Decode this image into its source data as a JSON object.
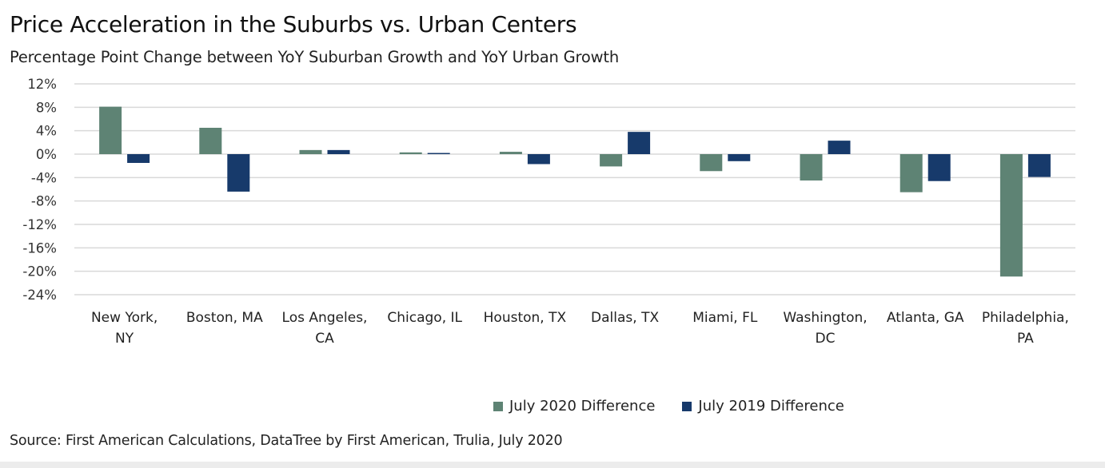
{
  "header": {
    "title": "Price Acceleration in the Suburbs vs. Urban Centers",
    "subtitle": "Percentage Point Change between YoY Suburban Growth and YoY Urban Growth"
  },
  "footer": {
    "source": "Source: First American Calculations, DataTree by First American, Trulia, July 2020"
  },
  "chart_data": {
    "type": "bar",
    "title": "Price Acceleration in the Suburbs vs. Urban Centers",
    "subtitle": "Percentage Point Change between YoY Suburban Growth and YoY Urban Growth",
    "xlabel": "",
    "ylabel": "",
    "unit": "%",
    "ylim": [
      -24,
      12
    ],
    "yticks": [
      12,
      8,
      4,
      0,
      -4,
      -8,
      -12,
      -16,
      -20,
      -24
    ],
    "ytick_labels": [
      "12%",
      "8%",
      "4%",
      "0%",
      "-4%",
      "-8%",
      "-12%",
      "-16%",
      "-20%",
      "-24%"
    ],
    "grid": true,
    "legend_position": "bottom-center",
    "categories": [
      [
        "New York,",
        "NY"
      ],
      [
        "Boston, MA"
      ],
      [
        "Los Angeles,",
        "CA"
      ],
      [
        "Chicago, IL"
      ],
      [
        "Houston, TX"
      ],
      [
        "Dallas, TX"
      ],
      [
        "Miami, FL"
      ],
      [
        "Washington,",
        "DC"
      ],
      [
        "Atlanta, GA"
      ],
      [
        "Philadelphia,",
        "PA"
      ]
    ],
    "series": [
      {
        "name": "July 2020 Difference",
        "color": "#5e8374",
        "values": [
          8.1,
          4.5,
          0.7,
          0.3,
          0.4,
          -2.1,
          -2.9,
          -4.5,
          -6.5,
          -20.9
        ]
      },
      {
        "name": "July 2019 Difference",
        "color": "#173a6b",
        "values": [
          -1.5,
          -6.4,
          0.7,
          0.2,
          -1.7,
          3.8,
          -1.2,
          2.3,
          -4.6,
          -3.9
        ]
      }
    ]
  },
  "colors": {
    "gridline": "#d9d9d9",
    "background": "#ffffff"
  }
}
